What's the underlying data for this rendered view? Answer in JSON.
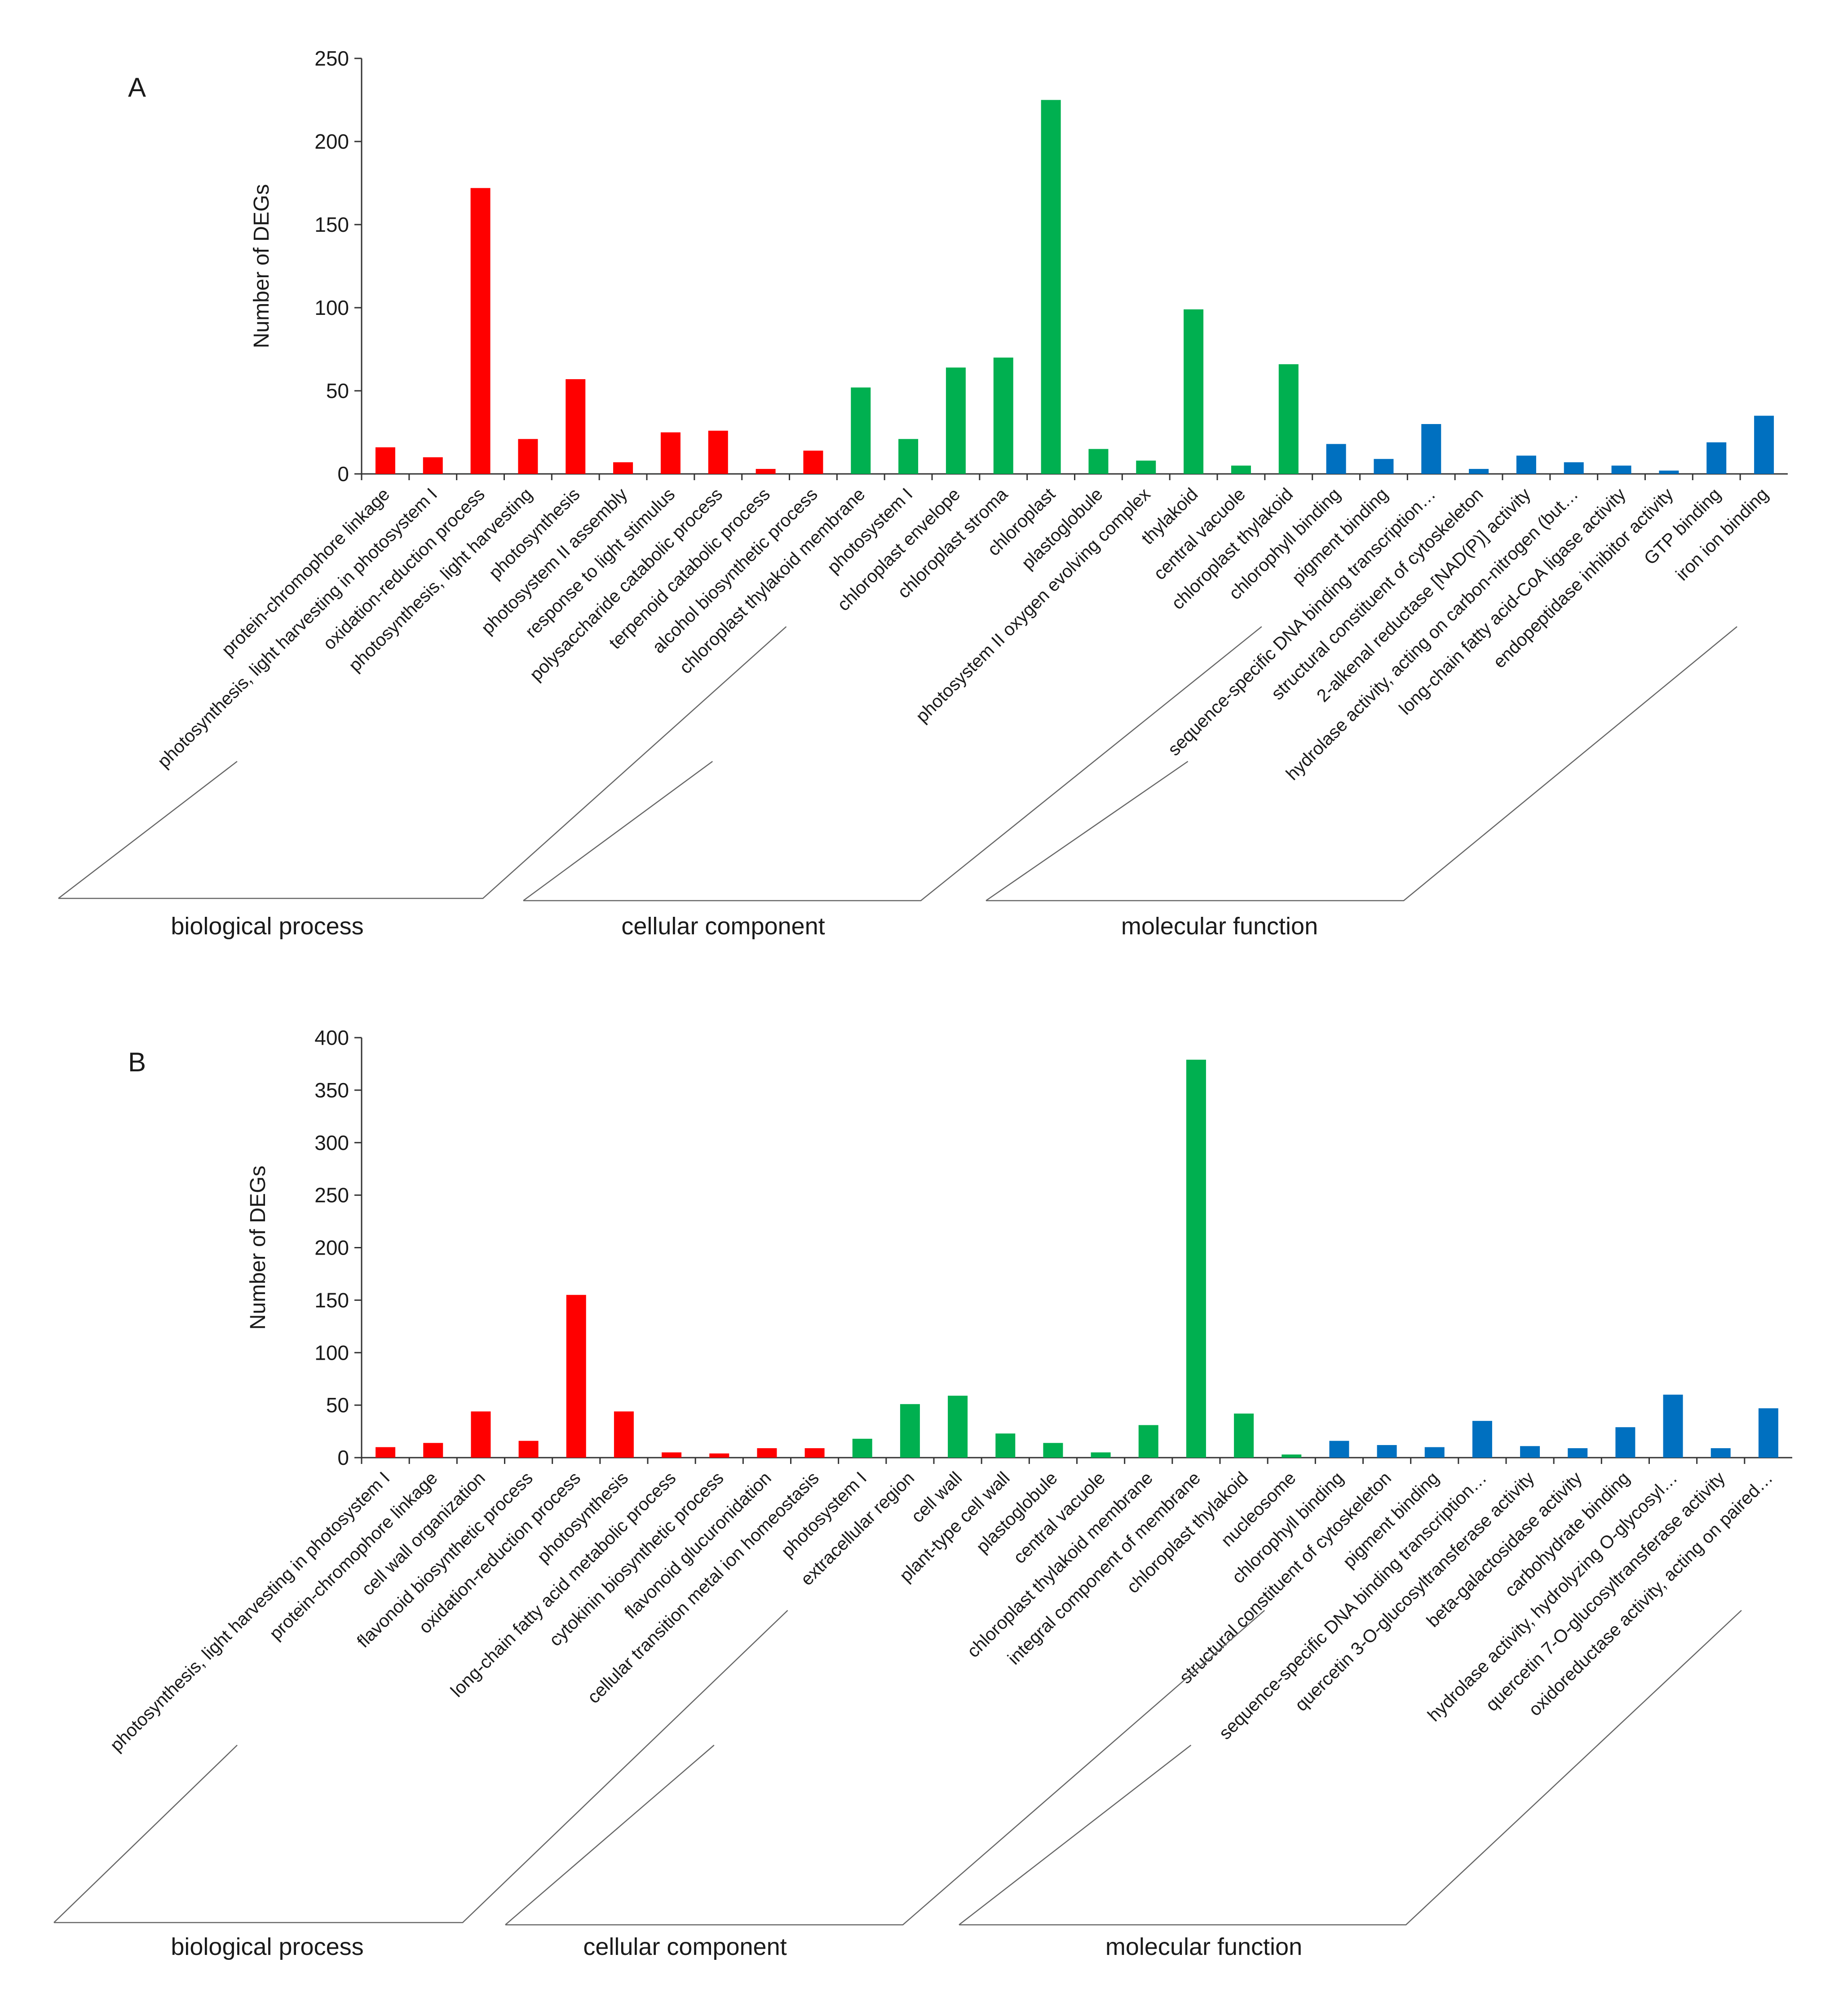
{
  "colors": {
    "biological_process": "#ff0000",
    "cellular_component": "#00b050",
    "molecular_function": "#0070c0"
  },
  "chart_data": [
    {
      "type": "bar",
      "panel": "A",
      "ylabel": "Number of DEGs",
      "ylim": [
        0,
        250
      ],
      "yticks": [
        0,
        50,
        100,
        150,
        200,
        250
      ],
      "groups": [
        {
          "name": "biological process",
          "color_key": "biological_process",
          "categories": [
            "protein-chromophore linkage",
            "photosynthesis, light harvesting in photosystem I",
            "oxidation-reduction process",
            "photosynthesis, light harvesting",
            "photosynthesis",
            "photosystem II assembly",
            "response to light stimulus",
            "polysaccharide catabolic process",
            "terpenoid catabolic process",
            "alcohol biosynthetic process"
          ],
          "values": [
            16,
            10,
            172,
            21,
            57,
            7,
            25,
            26,
            3,
            14
          ]
        },
        {
          "name": "cellular component",
          "color_key": "cellular_component",
          "categories": [
            "chloroplast thylakoid membrane",
            "photosystem I",
            "chloroplast envelope",
            "chloroplast stroma",
            "chloroplast",
            "plastoglobule",
            "photosystem II oxygen evolving complex",
            "thylakoid",
            "central vacuole",
            "chloroplast thylakoid"
          ],
          "values": [
            52,
            21,
            64,
            70,
            225,
            15,
            8,
            99,
            5,
            66
          ]
        },
        {
          "name": "molecular function",
          "color_key": "molecular_function",
          "categories": [
            "chlorophyll binding",
            "pigment binding",
            "sequence-specific DNA binding transcription…",
            "structural constituent of cytoskeleton",
            "2-alkenal reductase [NAD(P)] activity",
            "hydrolase activity, acting on carbon-nitrogen (but…",
            "long-chain fatty acid-CoA ligase activity",
            "endopeptidase inhibitor activity",
            "GTP binding",
            "iron ion binding"
          ],
          "values": [
            18,
            9,
            30,
            3,
            11,
            7,
            5,
            2,
            19,
            35
          ]
        }
      ]
    },
    {
      "type": "bar",
      "panel": "B",
      "ylabel": "Number of DEGs",
      "ylim": [
        0,
        400
      ],
      "yticks": [
        0,
        50,
        100,
        150,
        200,
        250,
        300,
        350,
        400
      ],
      "groups": [
        {
          "name": "biological process",
          "color_key": "biological_process",
          "categories": [
            "photosynthesis, light harvesting in photosystem I",
            "protein-chromophore linkage",
            "cell wall organization",
            "flavonoid biosynthetic process",
            "oxidation-reduction process",
            "photosynthesis",
            "long-chain fatty acid metabolic process",
            "cytokinin biosynthetic process",
            "flavonoid glucuronidation",
            "cellular transition metal ion homeostasis"
          ],
          "values": [
            10,
            14,
            44,
            16,
            155,
            44,
            5,
            4,
            9,
            9
          ]
        },
        {
          "name": "cellular component",
          "color_key": "cellular_component",
          "categories": [
            "photosystem I",
            "extracellular region",
            "cell wall",
            "plant-type cell wall",
            "plastoglobule",
            "central vacuole",
            "chloroplast thylakoid membrane",
            "integral component of membrane",
            "chloroplast thylakoid",
            "nucleosome"
          ],
          "values": [
            18,
            51,
            59,
            23,
            14,
            5,
            31,
            379,
            42,
            3
          ]
        },
        {
          "name": "molecular function",
          "color_key": "molecular_function",
          "categories": [
            "chlorophyll binding",
            "structural constituent of cytoskeleton",
            "pigment binding",
            "sequence-specific DNA binding transcription…",
            "quercetin 3-O-glucosyltransferase activity",
            "beta-galactosidase activity",
            "carbohydrate binding",
            "hydrolase activity, hydrolyzing O-glycosyl…",
            "quercetin 7-O-glucosyltransferase activity",
            "oxidoreductase activity, acting on paired…"
          ],
          "values": [
            16,
            12,
            10,
            35,
            11,
            9,
            29,
            60,
            9,
            47
          ]
        }
      ]
    }
  ]
}
